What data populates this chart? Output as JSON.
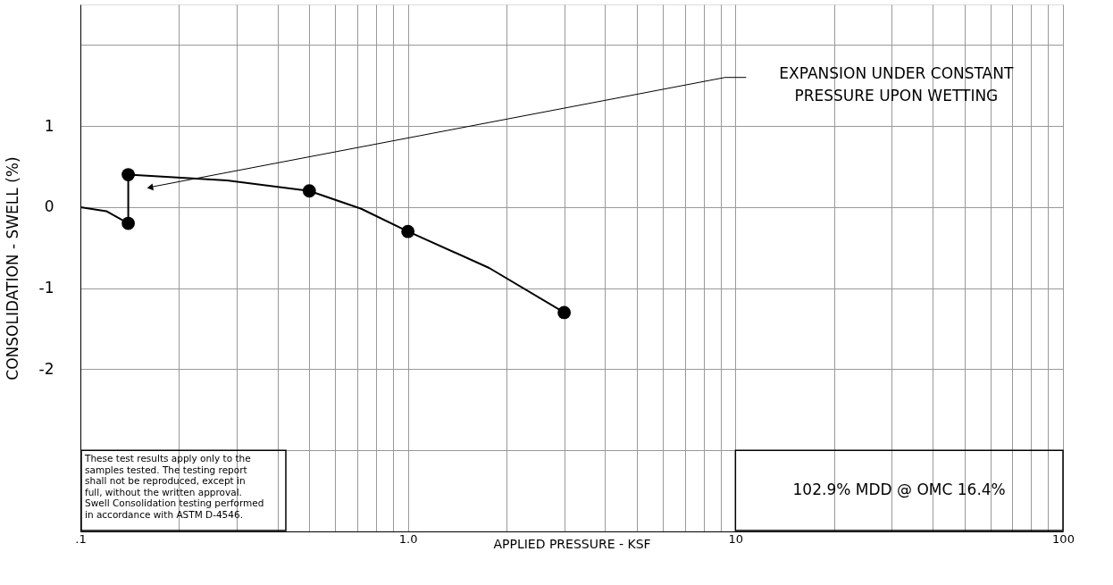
{
  "chart_data": {
    "type": "line",
    "xlabel": "APPLIED PRESSURE - KSF",
    "ylabel": "CONSOLIDATION - SWELL   (%)",
    "log": "x",
    "grid": true,
    "xlim": [
      0.1,
      100
    ],
    "ylim": [
      -4,
      2.5
    ],
    "xticks": [
      {
        "value": 0.1,
        "label": ".1"
      },
      {
        "value": 0.2,
        "label": null
      },
      {
        "value": 0.3,
        "label": null
      },
      {
        "value": 0.4,
        "label": null
      },
      {
        "value": 0.5,
        "label": null
      },
      {
        "value": 0.6,
        "label": null
      },
      {
        "value": 0.7,
        "label": null
      },
      {
        "value": 0.8,
        "label": null
      },
      {
        "value": 0.9,
        "label": null
      },
      {
        "value": 1,
        "label": "1.0"
      },
      {
        "value": 2,
        "label": null
      },
      {
        "value": 3,
        "label": null
      },
      {
        "value": 4,
        "label": null
      },
      {
        "value": 5,
        "label": null
      },
      {
        "value": 6,
        "label": null
      },
      {
        "value": 7,
        "label": null
      },
      {
        "value": 8,
        "label": null
      },
      {
        "value": 9,
        "label": null
      },
      10,
      {
        "value": 20,
        "label": null
      },
      {
        "value": 30,
        "label": null
      },
      {
        "value": 40,
        "label": null
      },
      {
        "value": 50,
        "label": null
      },
      {
        "value": 60,
        "label": null
      },
      {
        "value": 70,
        "label": null
      },
      {
        "value": 80,
        "label": null
      },
      {
        "value": 90,
        "label": null
      },
      100
    ],
    "yticks": [
      {
        "value": -4,
        "label": null
      },
      {
        "value": -3,
        "label": null
      },
      -2,
      -1,
      0,
      1,
      {
        "value": 2,
        "label": null
      }
    ],
    "series": [
      {
        "color": "#000000",
        "marker": "none",
        "x": [
          0.1,
          0.12,
          0.14,
          0.14,
          0.28,
          0.5,
          0.72,
          1.0,
          1.77,
          3.0
        ],
        "values": [
          0,
          -0.05,
          -0.2,
          0.4,
          0.33,
          0.2,
          -0.02,
          -0.3,
          -0.75,
          -1.3
        ]
      },
      {
        "type": "scatter",
        "color": "#000000",
        "marker": "circle",
        "x": [
          0.14,
          0.14,
          0.5,
          1.0,
          3.0
        ],
        "values": [
          0.4,
          -0.2,
          0.2,
          -0.3,
          -1.3
        ]
      }
    ],
    "annotations": [
      "EXPANSION UNDER CONSTANT\nPRESSURE UPON WETTING",
      "These test results apply only to the\nsamples tested. The testing report\nshall not be reproduced, except in\nfull, without the written approval.\nSwell Consolidation testing performed\nin accordance with ASTM D-4546.",
      "102.9% MDD @ OMC 16.4%"
    ]
  }
}
